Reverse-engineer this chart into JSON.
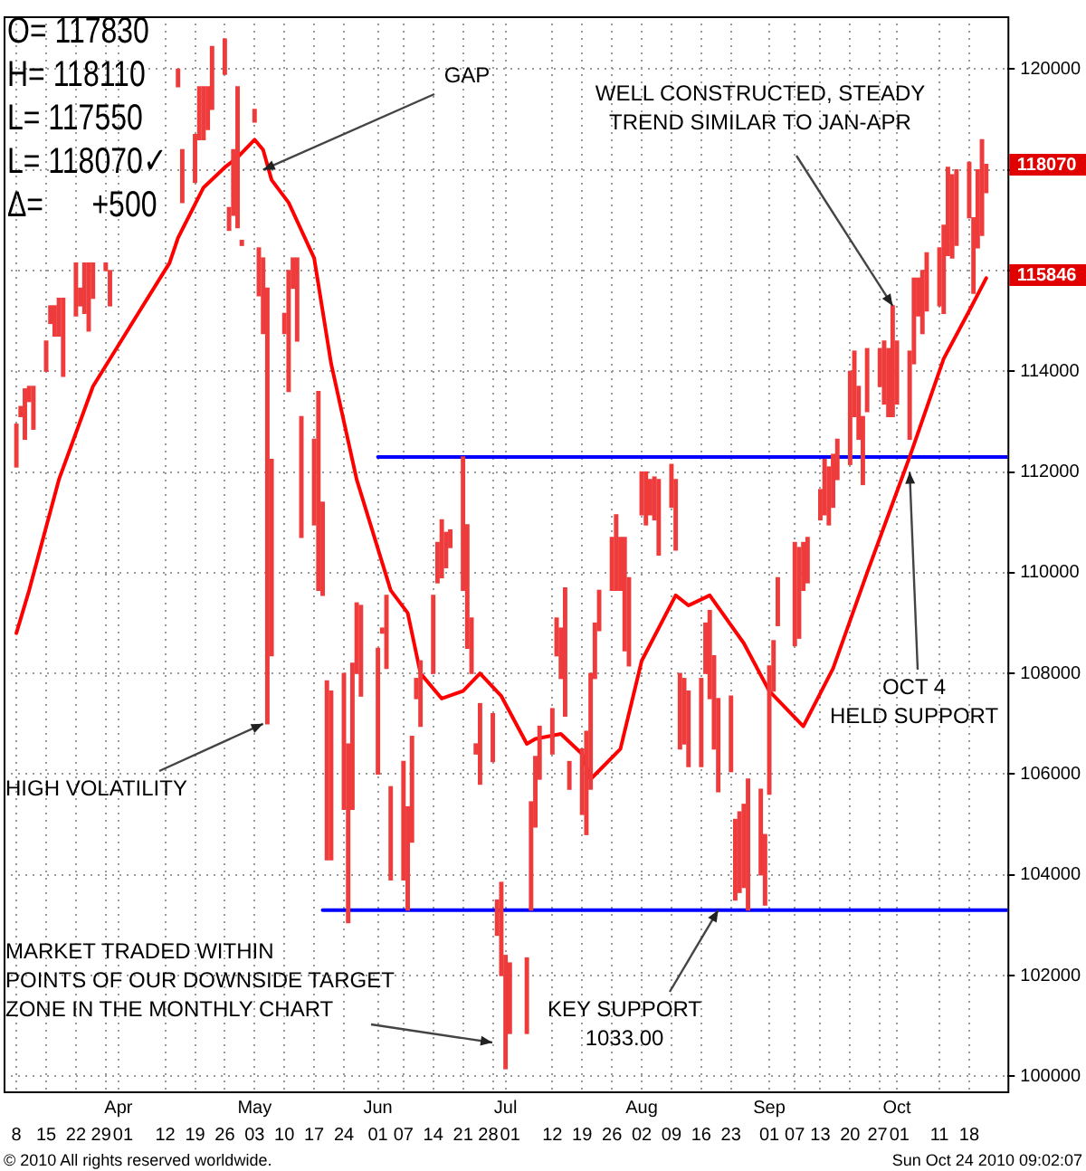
{
  "chart_data": {
    "type": "bar",
    "x": [
      "2010-03-08",
      "2010-03-09",
      "2010-03-10",
      "2010-03-11",
      "2010-03-12",
      "2010-03-15",
      "2010-03-16",
      "2010-03-17",
      "2010-03-18",
      "2010-03-19",
      "2010-03-22",
      "2010-03-23",
      "2010-03-24",
      "2010-03-25",
      "2010-03-26",
      "2010-03-29",
      "2010-03-30",
      "2010-03-31",
      "2010-04-01",
      "2010-04-05",
      "2010-04-06",
      "2010-04-07",
      "2010-04-08",
      "2010-04-09",
      "2010-04-12",
      "2010-04-13",
      "2010-04-14",
      "2010-04-15",
      "2010-04-16",
      "2010-04-19",
      "2010-04-20",
      "2010-04-21",
      "2010-04-22",
      "2010-04-23",
      "2010-04-26",
      "2010-04-27",
      "2010-04-28",
      "2010-04-29",
      "2010-04-30",
      "2010-05-03",
      "2010-05-04",
      "2010-05-05",
      "2010-05-06",
      "2010-05-07",
      "2010-05-10",
      "2010-05-11",
      "2010-05-12",
      "2010-05-13",
      "2010-05-14",
      "2010-05-17",
      "2010-05-18",
      "2010-05-19",
      "2010-05-20",
      "2010-05-21",
      "2010-05-24",
      "2010-05-25",
      "2010-05-26",
      "2010-05-27",
      "2010-05-28",
      "2010-06-01",
      "2010-06-02",
      "2010-06-03",
      "2010-06-04",
      "2010-06-07",
      "2010-06-08",
      "2010-06-09",
      "2010-06-10",
      "2010-06-11",
      "2010-06-14",
      "2010-06-15",
      "2010-06-16",
      "2010-06-17",
      "2010-06-18",
      "2010-06-21",
      "2010-06-22",
      "2010-06-23",
      "2010-06-24",
      "2010-06-25",
      "2010-06-28",
      "2010-06-29",
      "2010-06-30",
      "2010-07-01",
      "2010-07-02",
      "2010-07-06",
      "2010-07-07",
      "2010-07-08",
      "2010-07-09",
      "2010-07-12",
      "2010-07-13",
      "2010-07-14",
      "2010-07-15",
      "2010-07-16",
      "2010-07-19",
      "2010-07-20",
      "2010-07-21",
      "2010-07-22",
      "2010-07-23",
      "2010-07-26",
      "2010-07-27",
      "2010-07-28",
      "2010-07-29",
      "2010-07-30",
      "2010-08-02",
      "2010-08-03",
      "2010-08-04",
      "2010-08-05",
      "2010-08-06",
      "2010-08-09",
      "2010-08-10",
      "2010-08-11",
      "2010-08-12",
      "2010-08-13",
      "2010-08-16",
      "2010-08-17",
      "2010-08-18",
      "2010-08-19",
      "2010-08-20",
      "2010-08-23",
      "2010-08-24",
      "2010-08-25",
      "2010-08-26",
      "2010-08-27",
      "2010-08-30",
      "2010-08-31",
      "2010-09-01",
      "2010-09-02",
      "2010-09-03",
      "2010-09-07",
      "2010-09-08",
      "2010-09-09",
      "2010-09-10",
      "2010-09-13",
      "2010-09-14",
      "2010-09-15",
      "2010-09-16",
      "2010-09-17",
      "2010-09-20",
      "2010-09-21",
      "2010-09-22",
      "2010-09-23",
      "2010-09-24",
      "2010-09-27",
      "2010-09-28",
      "2010-09-29",
      "2010-09-30",
      "2010-10-01",
      "2010-10-04",
      "2010-10-05",
      "2010-10-06",
      "2010-10-07",
      "2010-10-08",
      "2010-10-11",
      "2010-10-12",
      "2010-10-13",
      "2010-10-14",
      "2010-10-15",
      "2010-10-18",
      "2010-10-19",
      "2010-10-20",
      "2010-10-21",
      "2010-10-22"
    ],
    "series": [
      {
        "color": "#ee3b3b",
        "values": [
          850,
          200,
          1000,
          300,
          850,
          600,
          350,
          600,
          750,
          1550,
          1050,
          350,
          1000,
          1350,
          700,
          150,
          700,
          null,
          null,
          null,
          null,
          null,
          null,
          null,
          null,
          null,
          null,
          350,
          1050,
          950,
          1050,
          1050,
          850,
          1250,
          700,
          450,
          1300,
          2800,
          100,
          250,
          950,
          1500,
          8650,
          3900,
          400,
          2400,
          600,
          1650,
          2400,
          1700,
          3950,
          1850,
          3550,
          3350,
          2700,
          3550,
          2900,
          1400,
          1800,
          2500,
          100,
          1450,
          1850,
          2350,
          2050,
          2100,
          400,
          1300,
          1550,
          800,
          1150,
          700,
          350,
          2650,
          2450,
          1100,
          200,
          1600,
          950,
          700,
          1850,
          2250,
          1400,
          1500,
          2150,
          1400,
          1050,
          900,
          750,
          1000,
          2550,
          550,
          1300,
          2050,
          2300,
          1100,
          800,
          1050,
          1500,
          1050,
          2250,
          1750,
          850,
          1050,
          700,
          850,
          1500,
          850,
          1400,
          1500,
          1300,
          1500,
          1750,
          1000,
          1750,
          1850,
          1850,
          1500,
          1600,
          1600,
          1650,
          2600,
          1700,
          1400,
          2550,
          1000,
          950,
          2050,
          1800,
          950,
          900,
          600,
          1100,
          1150,
          1050,
          800,
          1850,
          1300,
          1050,
          1350,
          1250,
          750,
          1250,
          1350,
          2200,
          1250,
          1750,
          1700,
          750,
          1250,
          1150,
          1150,
          1750,
          1750,
          1650,
          1500,
          1100,
          1500,
          1550,
          1900,
          560
        ],
        "base": [
          112100,
          113100,
          112650,
          113400,
          112850,
          114000,
          114950,
          114700,
          114700,
          113900,
          115100,
          115300,
          115150,
          114800,
          115450,
          116000,
          115300,
          null,
          null,
          null,
          null,
          null,
          null,
          null,
          null,
          null,
          null,
          119650,
          117350,
          117750,
          118600,
          118600,
          118800,
          119200,
          119900,
          116800,
          117100,
          116850,
          116500,
          118950,
          115500,
          114750,
          107000,
          108350,
          114750,
          113600,
          115650,
          114600,
          110700,
          110950,
          109650,
          109550,
          104300,
          104300,
          105300,
          103050,
          105300,
          108000,
          107550,
          106000,
          108800,
          108100,
          103900,
          103900,
          103300,
          104650,
          107500,
          106950,
          108000,
          109800,
          109900,
          110100,
          110500,
          109650,
          108500,
          108000,
          106400,
          105800,
          106250,
          102800,
          102000,
          100150,
          100850,
          100850,
          103300,
          104950,
          105900,
          106400,
          108350,
          107900,
          107150,
          105700,
          105200,
          104800,
          105700,
          107900,
          108850,
          109650,
          109650,
          109650,
          108450,
          108150,
          111150,
          110950,
          111150,
          111050,
          110350,
          111300,
          110450,
          106500,
          106600,
          106150,
          106150,
          108000,
          107500,
          106500,
          105650,
          106050,
          103500,
          103650,
          103750,
          103300,
          104000,
          103400,
          105600,
          107650,
          108950,
          108550,
          108700,
          109650,
          109800,
          111050,
          111150,
          110950,
          111300,
          111850,
          112150,
          113100,
          112650,
          111750,
          113200,
          113700,
          113350,
          113100,
          113100,
          113350,
          112650,
          114150,
          115100,
          114750,
          115200,
          115300,
          115150,
          116300,
          116250,
          116500,
          117050,
          115550,
          116450,
          116700,
          117550
        ]
      },
      {
        "type": "line",
        "color": "#ff0000",
        "x": [
          "2010-03-08",
          "2010-03-11",
          "2010-03-18",
          "2010-03-26",
          "2010-04-06",
          "2010-04-13",
          "2010-04-15",
          "2010-04-21",
          "2010-04-26",
          "2010-04-29",
          "2010-05-03",
          "2010-05-05",
          "2010-05-07",
          "2010-05-11",
          "2010-05-17",
          "2010-05-21",
          "2010-05-27",
          "2010-06-04",
          "2010-06-08",
          "2010-06-11",
          "2010-06-16",
          "2010-06-21",
          "2010-06-25",
          "2010-06-30",
          "2010-07-06",
          "2010-07-08",
          "2010-07-14",
          "2010-07-19",
          "2010-07-21",
          "2010-07-28",
          "2010-08-02",
          "2010-08-10",
          "2010-08-13",
          "2010-08-18",
          "2010-08-26",
          "2010-09-01",
          "2010-09-09",
          "2010-09-16",
          "2010-09-24",
          "2010-10-04",
          "2010-10-12",
          "2010-10-18",
          "2010-10-22"
        ],
        "values": [
          108800,
          109650,
          111850,
          113700,
          115200,
          116150,
          116650,
          117650,
          118050,
          118250,
          118600,
          118400,
          117800,
          117350,
          116250,
          114150,
          111850,
          109650,
          109200,
          108000,
          107500,
          107650,
          108000,
          107550,
          106600,
          106700,
          106800,
          106400,
          105900,
          106500,
          108250,
          109550,
          109350,
          109550,
          108600,
          107650,
          106950,
          108100,
          110000,
          112300,
          114250,
          115200,
          115850
        ]
      },
      {
        "type": "line",
        "color": "#0000ff",
        "x": [
          "2010-06-01",
          "2010-10-27"
        ],
        "values": [
          112300,
          112300
        ]
      },
      {
        "type": "line",
        "color": "#0000ff",
        "x": [
          "2010-05-19",
          "2010-10-27"
        ],
        "values": [
          103300,
          103300
        ]
      }
    ],
    "xlim": [
      "2010-03-05",
      "2010-10-27"
    ],
    "xticks": [
      {
        "value": "2010-03-08",
        "label": "8"
      },
      {
        "value": "2010-03-15",
        "label": "15"
      },
      {
        "value": "2010-03-22",
        "label": "22"
      },
      {
        "value": "2010-03-29",
        "label": "29"
      },
      {
        "value": "2010-04-01",
        "label": "01"
      },
      {
        "value": "2010-04-12",
        "label": "12"
      },
      {
        "value": "2010-04-19",
        "label": "19"
      },
      {
        "value": "2010-04-26",
        "label": "26"
      },
      {
        "value": "2010-05-03",
        "label": "03"
      },
      {
        "value": "2010-05-10",
        "label": "10"
      },
      {
        "value": "2010-05-17",
        "label": "17"
      },
      {
        "value": "2010-05-24",
        "label": "24"
      },
      {
        "value": "2010-06-01",
        "label": "01"
      },
      {
        "value": "2010-06-07",
        "label": "07"
      },
      {
        "value": "2010-06-14",
        "label": "14"
      },
      {
        "value": "2010-06-21",
        "label": "21"
      },
      {
        "value": "2010-06-28",
        "label": "28"
      },
      {
        "value": "2010-07-01",
        "label": "01"
      },
      {
        "value": "2010-07-12",
        "label": "12"
      },
      {
        "value": "2010-07-19",
        "label": "19"
      },
      {
        "value": "2010-07-26",
        "label": "26"
      },
      {
        "value": "2010-08-02",
        "label": "02"
      },
      {
        "value": "2010-08-09",
        "label": "09"
      },
      {
        "value": "2010-08-16",
        "label": "16"
      },
      {
        "value": "2010-08-23",
        "label": "23"
      },
      {
        "value": "2010-09-01",
        "label": "01"
      },
      {
        "value": "2010-09-07",
        "label": "07"
      },
      {
        "value": "2010-09-13",
        "label": "13"
      },
      {
        "value": "2010-09-20",
        "label": "20"
      },
      {
        "value": "2010-09-27",
        "label": "27"
      },
      {
        "value": "2010-10-01",
        "label": "01"
      },
      {
        "value": "2010-10-11",
        "label": "11"
      },
      {
        "value": "2010-10-18",
        "label": "18"
      }
    ],
    "x2lim": [
      "2010-03-05",
      "2010-10-27"
    ],
    "x2ticks": [
      {
        "value": "2010-04-01",
        "label": "Apr"
      },
      {
        "value": "2010-05-03",
        "label": "May"
      },
      {
        "value": "2010-06-01",
        "label": "Jun"
      },
      {
        "value": "2010-07-01",
        "label": "Jul"
      },
      {
        "value": "2010-08-02",
        "label": "Aug"
      },
      {
        "value": "2010-09-01",
        "label": "Sep"
      },
      {
        "value": "2010-10-01",
        "label": "Oct"
      }
    ],
    "ylim": [
      99700,
      121050
    ],
    "yticks": [
      100000,
      102000,
      104000,
      106000,
      108000,
      110000,
      112000,
      114000,
      {
        "value": 116000,
        "label": null
      },
      {
        "value": 118000,
        "label": null
      },
      120000
    ],
    "grid": true,
    "marker": "none",
    "line_style": "solid",
    "annotations": [
      "O= 117830",
      "H= 118110",
      "L= 117550",
      "L= 118070✓",
      "Δ=      +500",
      {
        "text": "GAP",
        "x": "2010-05-05",
        "y": 118000
      },
      {
        "text": "WELL CONSTRUCTED, STEADY\nTREND SIMILAR TO JAN-APR",
        "x": "2010-09-30",
        "y": 115300
      },
      {
        "text": "HIGH VOLATILITY",
        "x": "2010-05-05",
        "y": 107000
      },
      "MARKET TRADED WITHIN\nPOINTS OF OUR DOWNSIDE TARGET\nZONE IN THE MONTHLY CHART",
      {
        "text": "OCT 4\nHELD SUPPORT",
        "x": "2010-10-04",
        "y": 112000
      },
      "118070",
      "115846",
      "© 2010 All rights reserved worldwide.",
      "Sun Oct 24 2010 09:02:07",
      {
        "text": "KEY SUPPORT\n1033.00",
        "x": "2010-08-20",
        "y": 103300
      }
    ]
  }
}
